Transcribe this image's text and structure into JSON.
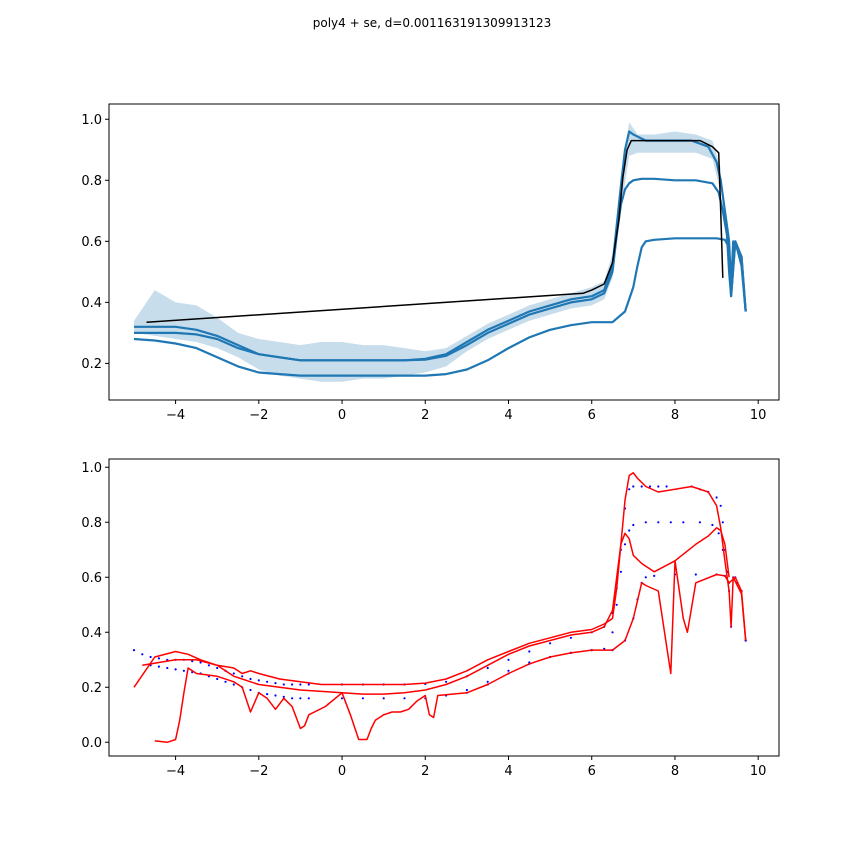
{
  "figure": {
    "title": "poly4 + se, d=0.001163191309913123"
  },
  "chart_data": [
    {
      "type": "line",
      "panel": "top",
      "title": "",
      "xlabel": "",
      "ylabel": "",
      "xlim": [
        -5.6,
        10.5
      ],
      "ylim": [
        0.08,
        1.05
      ],
      "xticks": [
        -4,
        -2,
        0,
        2,
        4,
        6,
        8,
        10
      ],
      "xtick_labels": [
        "−4",
        "−2",
        "0",
        "2",
        "4",
        "6",
        "8",
        "10"
      ],
      "yticks": [
        0.2,
        0.4,
        0.6,
        0.8,
        1.0
      ],
      "ytick_labels": [
        "0.2",
        "0.4",
        "0.6",
        "0.8",
        "1.0"
      ],
      "colors": {
        "fit": "#1f77b4",
        "band": "#1f77b4",
        "reference": "#000000"
      },
      "series": [
        {
          "role": "fit",
          "x": [
            -5.0,
            -4.5,
            -4.0,
            -3.5,
            -3.0,
            -2.5,
            -2.0,
            -1.5,
            -1.0,
            -0.5,
            0.0,
            0.5,
            1.0,
            1.5,
            2.0,
            2.5,
            3.0,
            3.5,
            4.0,
            4.5,
            5.0,
            5.5,
            6.0,
            6.3,
            6.5,
            6.6,
            6.7,
            6.8,
            6.9,
            7.0,
            7.3,
            7.6,
            8.0,
            8.4,
            8.8,
            9.0,
            9.1,
            9.2,
            9.3,
            9.35,
            9.4,
            9.6,
            9.7
          ],
          "y": [
            0.32,
            0.32,
            0.32,
            0.31,
            0.29,
            0.26,
            0.23,
            0.22,
            0.21,
            0.21,
            0.21,
            0.21,
            0.21,
            0.21,
            0.215,
            0.23,
            0.27,
            0.31,
            0.34,
            0.37,
            0.39,
            0.41,
            0.42,
            0.44,
            0.52,
            0.65,
            0.78,
            0.9,
            0.96,
            0.95,
            0.93,
            0.93,
            0.93,
            0.93,
            0.91,
            0.86,
            0.8,
            0.7,
            0.6,
            0.45,
            0.6,
            0.55,
            0.37
          ]
        },
        {
          "role": "fit",
          "x": [
            -5.0,
            -4.5,
            -4.0,
            -3.5,
            -3.0,
            -2.5,
            -2.0,
            -1.5,
            -1.0,
            -0.5,
            0.0,
            0.5,
            1.0,
            1.5,
            2.0,
            2.5,
            3.0,
            3.5,
            4.0,
            4.5,
            5.0,
            5.5,
            6.0,
            6.3,
            6.5,
            6.6,
            6.7,
            6.8,
            6.9,
            7.0,
            7.2,
            7.5,
            8.0,
            8.5,
            8.9,
            9.05,
            9.15,
            9.25,
            9.3,
            9.35,
            9.45,
            9.6,
            9.7
          ],
          "y": [
            0.3,
            0.3,
            0.3,
            0.295,
            0.28,
            0.25,
            0.23,
            0.22,
            0.21,
            0.21,
            0.21,
            0.21,
            0.21,
            0.21,
            0.212,
            0.225,
            0.26,
            0.3,
            0.33,
            0.36,
            0.38,
            0.4,
            0.41,
            0.43,
            0.5,
            0.62,
            0.72,
            0.77,
            0.79,
            0.8,
            0.805,
            0.805,
            0.8,
            0.8,
            0.79,
            0.76,
            0.7,
            0.62,
            0.5,
            0.42,
            0.6,
            0.52,
            0.37
          ]
        },
        {
          "role": "fit",
          "x": [
            -5.0,
            -4.5,
            -4.0,
            -3.5,
            -3.0,
            -2.5,
            -2.0,
            -1.5,
            -1.0,
            -0.5,
            0.0,
            0.5,
            1.0,
            1.5,
            2.0,
            2.5,
            3.0,
            3.5,
            4.0,
            4.5,
            5.0,
            5.5,
            6.0,
            6.5,
            6.8,
            7.0,
            7.1,
            7.2,
            7.3,
            7.5,
            8.0,
            8.5,
            9.0,
            9.2,
            9.3,
            9.35,
            9.45,
            9.6,
            9.7
          ],
          "y": [
            0.28,
            0.275,
            0.265,
            0.25,
            0.22,
            0.19,
            0.17,
            0.165,
            0.16,
            0.16,
            0.16,
            0.16,
            0.16,
            0.16,
            0.16,
            0.165,
            0.18,
            0.21,
            0.25,
            0.285,
            0.31,
            0.325,
            0.335,
            0.335,
            0.37,
            0.45,
            0.52,
            0.58,
            0.6,
            0.605,
            0.61,
            0.61,
            0.61,
            0.605,
            0.58,
            0.42,
            0.6,
            0.55,
            0.37
          ]
        },
        {
          "role": "reference",
          "x": [
            -4.7,
            5.8,
            6.0,
            6.3,
            6.5,
            6.65,
            6.75,
            6.85,
            6.95,
            7.3,
            8.0,
            8.6,
            8.9,
            9.05,
            9.1,
            9.15
          ],
          "y": [
            0.335,
            0.43,
            0.44,
            0.46,
            0.53,
            0.67,
            0.81,
            0.9,
            0.93,
            0.93,
            0.93,
            0.93,
            0.91,
            0.89,
            0.7,
            0.48
          ]
        }
      ],
      "bands": [
        {
          "x": [
            -5.0,
            -4.5,
            -4.0,
            -3.5,
            -3.0,
            -2.5,
            -2.0,
            -1.5,
            -1.0,
            -0.5,
            0.0,
            0.5,
            1.0,
            1.5,
            2.0,
            2.5,
            3.0,
            3.5,
            4.0,
            4.5,
            5.0,
            5.5,
            6.0,
            6.3,
            6.5,
            6.7,
            6.9,
            7.1,
            7.5,
            8.0,
            8.5,
            8.9,
            9.1
          ],
          "upper": [
            0.34,
            0.44,
            0.4,
            0.39,
            0.35,
            0.3,
            0.28,
            0.27,
            0.26,
            0.27,
            0.27,
            0.26,
            0.26,
            0.25,
            0.24,
            0.25,
            0.29,
            0.33,
            0.36,
            0.39,
            0.41,
            0.43,
            0.45,
            0.47,
            0.56,
            0.82,
            0.99,
            0.95,
            0.95,
            0.96,
            0.95,
            0.93,
            0.84
          ],
          "lower": [
            0.3,
            0.29,
            0.28,
            0.27,
            0.25,
            0.22,
            0.18,
            0.16,
            0.15,
            0.14,
            0.14,
            0.15,
            0.15,
            0.16,
            0.17,
            0.19,
            0.24,
            0.28,
            0.31,
            0.34,
            0.36,
            0.38,
            0.39,
            0.41,
            0.48,
            0.7,
            0.88,
            0.89,
            0.89,
            0.89,
            0.89,
            0.87,
            0.76
          ]
        }
      ],
      "legend": "none",
      "grid": false
    },
    {
      "type": "line",
      "panel": "bottom",
      "title": "",
      "xlabel": "",
      "ylabel": "",
      "xlim": [
        -5.6,
        10.5
      ],
      "ylim": [
        -0.05,
        1.03
      ],
      "xticks": [
        -4,
        -2,
        0,
        2,
        4,
        6,
        8,
        10
      ],
      "xtick_labels": [
        "−4",
        "−2",
        "0",
        "2",
        "4",
        "6",
        "8",
        "10"
      ],
      "yticks": [
        0.0,
        0.2,
        0.4,
        0.6,
        0.8,
        1.0
      ],
      "ytick_labels": [
        "0.0",
        "0.2",
        "0.4",
        "0.6",
        "0.8",
        "1.0"
      ],
      "colors": {
        "predicted": "#ff0000",
        "observed": "#0000ff"
      },
      "observed_points": [
        {
          "x": [
            -5.0,
            -4.8,
            -4.6,
            -4.4,
            -4.2,
            -4.0,
            -3.8,
            -3.6,
            -3.4,
            -3.2,
            -3.0,
            -2.8,
            -2.6,
            -2.4,
            -2.2,
            -2.0,
            -1.8,
            -1.6,
            -1.4,
            -1.2,
            -1.0,
            -0.8,
            0.0,
            0.5,
            1.0,
            1.5,
            2.0,
            2.5,
            3.0,
            3.5,
            4.0,
            4.5,
            5.0,
            5.5,
            6.0,
            6.3,
            6.5,
            6.6,
            6.7,
            6.8,
            6.9,
            7.0,
            7.2,
            7.4,
            7.6,
            7.8,
            8.4,
            8.6,
            8.8,
            9.0,
            9.1,
            9.15,
            9.2,
            9.25,
            9.3,
            9.35,
            9.4,
            9.5,
            9.6,
            9.7
          ],
          "y": [
            0.335,
            0.32,
            0.31,
            0.305,
            0.3,
            0.3,
            0.3,
            0.295,
            0.29,
            0.28,
            0.27,
            0.26,
            0.25,
            0.24,
            0.23,
            0.225,
            0.22,
            0.215,
            0.21,
            0.21,
            0.21,
            0.21,
            0.21,
            0.21,
            0.21,
            0.21,
            0.212,
            0.22,
            0.24,
            0.27,
            0.3,
            0.33,
            0.36,
            0.38,
            0.4,
            0.42,
            0.47,
            0.56,
            0.7,
            0.85,
            0.92,
            0.93,
            0.93,
            0.93,
            0.93,
            0.93,
            0.93,
            0.92,
            0.91,
            0.89,
            0.86,
            0.8,
            0.7,
            0.62,
            0.55,
            0.42,
            0.6,
            0.58,
            0.55,
            0.37
          ]
        },
        {
          "x": [
            -4.6,
            -4.4,
            -4.2,
            -4.0,
            -3.8,
            -3.6,
            -3.4,
            -3.2,
            -3.0,
            -2.8,
            -2.6,
            -2.4,
            -2.2,
            -2.0,
            -1.8,
            -1.6,
            -1.4,
            -1.2,
            -1.0,
            -0.8,
            0.0,
            0.5,
            1.0,
            1.5,
            2.0,
            2.5,
            3.0,
            3.5,
            4.0,
            4.5,
            5.0,
            5.5,
            6.0,
            6.3,
            6.5,
            6.6,
            6.7,
            6.8,
            6.9,
            7.0,
            7.3,
            7.6,
            7.9,
            8.2,
            8.6,
            8.9,
            9.05,
            9.15,
            9.25
          ],
          "y": [
            0.28,
            0.275,
            0.27,
            0.265,
            0.26,
            0.255,
            0.25,
            0.24,
            0.23,
            0.22,
            0.21,
            0.2,
            0.19,
            0.18,
            0.175,
            0.17,
            0.165,
            0.16,
            0.16,
            0.16,
            0.16,
            0.16,
            0.16,
            0.16,
            0.16,
            0.17,
            0.19,
            0.22,
            0.26,
            0.29,
            0.31,
            0.325,
            0.335,
            0.34,
            0.4,
            0.5,
            0.62,
            0.72,
            0.77,
            0.79,
            0.8,
            0.8,
            0.8,
            0.8,
            0.8,
            0.79,
            0.76,
            0.7,
            0.62
          ]
        },
        {
          "x": [
            3.0,
            3.5,
            4.0,
            4.5,
            5.0,
            5.5,
            6.0,
            6.5,
            6.8,
            7.0,
            7.1,
            7.2,
            7.3,
            7.5,
            8.0,
            8.5,
            9.0,
            9.2,
            9.3,
            9.45,
            9.6,
            9.7
          ],
          "y": [
            0.18,
            0.21,
            0.25,
            0.285,
            0.31,
            0.325,
            0.335,
            0.335,
            0.37,
            0.45,
            0.52,
            0.58,
            0.6,
            0.605,
            0.61,
            0.61,
            0.61,
            0.605,
            0.58,
            0.6,
            0.55,
            0.37
          ]
        }
      ],
      "series": [
        {
          "role": "predicted",
          "x": [
            -5.0,
            -4.5,
            -4.0,
            -3.7,
            -3.4,
            -3.0,
            -2.6,
            -2.4,
            -2.2,
            -2.0,
            -1.5,
            -1.0,
            -0.5,
            0.0,
            0.5,
            1.0,
            1.5,
            2.0,
            2.5,
            3.0,
            3.5,
            4.0,
            4.5,
            5.0,
            5.5,
            6.0,
            6.3,
            6.5,
            6.6,
            6.7,
            6.8,
            6.9,
            7.0,
            7.1,
            7.3,
            7.6,
            8.0,
            8.4,
            8.8,
            9.0,
            9.1,
            9.2,
            9.3,
            9.35,
            9.4,
            9.6,
            9.7
          ],
          "y": [
            0.2,
            0.31,
            0.33,
            0.32,
            0.3,
            0.28,
            0.27,
            0.25,
            0.26,
            0.25,
            0.23,
            0.22,
            0.21,
            0.21,
            0.21,
            0.21,
            0.21,
            0.215,
            0.23,
            0.26,
            0.3,
            0.33,
            0.36,
            0.38,
            0.4,
            0.41,
            0.43,
            0.45,
            0.56,
            0.72,
            0.88,
            0.97,
            0.98,
            0.96,
            0.93,
            0.91,
            0.92,
            0.93,
            0.91,
            0.86,
            0.78,
            0.66,
            0.55,
            0.42,
            0.6,
            0.54,
            0.37
          ]
        },
        {
          "role": "predicted",
          "x": [
            -4.8,
            -4.4,
            -4.0,
            -3.5,
            -3.0,
            -2.8,
            -2.6,
            -2.4,
            -2.2,
            -2.0,
            -1.5,
            -1.0,
            -0.5,
            0.0,
            0.5,
            1.0,
            1.5,
            2.0,
            2.5,
            3.0,
            3.5,
            4.0,
            4.5,
            5.0,
            5.5,
            6.0,
            6.3,
            6.5,
            6.6,
            6.7,
            6.8,
            6.9,
            7.0,
            7.2,
            7.5,
            8.0,
            8.5,
            8.8,
            9.0,
            9.1,
            9.2,
            9.3
          ],
          "y": [
            0.28,
            0.29,
            0.3,
            0.3,
            0.28,
            0.26,
            0.24,
            0.23,
            0.22,
            0.21,
            0.2,
            0.19,
            0.185,
            0.18,
            0.175,
            0.175,
            0.18,
            0.19,
            0.21,
            0.24,
            0.28,
            0.32,
            0.35,
            0.37,
            0.39,
            0.4,
            0.42,
            0.48,
            0.6,
            0.72,
            0.76,
            0.74,
            0.68,
            0.65,
            0.62,
            0.66,
            0.72,
            0.75,
            0.78,
            0.77,
            0.72,
            0.6
          ]
        },
        {
          "role": "predicted",
          "x": [
            -4.5,
            -4.2,
            -4.0,
            -3.9,
            -3.8,
            -3.7,
            -3.5,
            -3.0,
            -2.6,
            -2.4,
            -2.2,
            -2.0,
            -1.8,
            -1.6,
            -1.4,
            -1.2,
            -1.0,
            -0.9,
            -0.8,
            -0.4,
            0.0,
            0.2,
            0.4,
            0.6,
            0.7,
            0.8,
            1.0,
            1.2,
            1.4,
            1.6,
            1.8,
            2.0,
            2.1,
            2.2,
            2.3,
            3.0,
            3.5,
            4.0,
            4.5,
            5.0,
            5.5,
            6.0,
            6.5,
            6.8,
            7.0,
            7.2,
            7.3,
            7.6,
            7.8,
            7.9,
            8.0,
            8.2,
            8.3,
            8.5,
            9.0,
            9.2,
            9.3,
            9.45,
            9.6,
            9.7
          ],
          "y": [
            0.005,
            0.0,
            0.01,
            0.08,
            0.18,
            0.27,
            0.25,
            0.24,
            0.22,
            0.2,
            0.11,
            0.18,
            0.16,
            0.12,
            0.16,
            0.13,
            0.05,
            0.06,
            0.1,
            0.13,
            0.18,
            0.1,
            0.01,
            0.01,
            0.05,
            0.08,
            0.1,
            0.11,
            0.11,
            0.12,
            0.15,
            0.17,
            0.1,
            0.09,
            0.17,
            0.18,
            0.21,
            0.25,
            0.285,
            0.31,
            0.325,
            0.335,
            0.335,
            0.37,
            0.45,
            0.58,
            0.57,
            0.55,
            0.35,
            0.25,
            0.66,
            0.45,
            0.4,
            0.58,
            0.61,
            0.605,
            0.58,
            0.6,
            0.55,
            0.37
          ]
        }
      ],
      "legend": "none",
      "grid": false
    }
  ]
}
